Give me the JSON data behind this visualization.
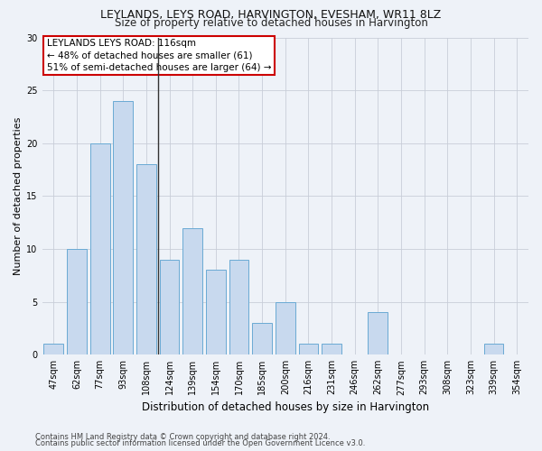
{
  "title": "LEYLANDS, LEYS ROAD, HARVINGTON, EVESHAM, WR11 8LZ",
  "subtitle": "Size of property relative to detached houses in Harvington",
  "xlabel": "Distribution of detached houses by size in Harvington",
  "ylabel": "Number of detached properties",
  "categories": [
    "47sqm",
    "62sqm",
    "77sqm",
    "93sqm",
    "108sqm",
    "124sqm",
    "139sqm",
    "154sqm",
    "170sqm",
    "185sqm",
    "200sqm",
    "216sqm",
    "231sqm",
    "246sqm",
    "262sqm",
    "277sqm",
    "293sqm",
    "308sqm",
    "323sqm",
    "339sqm",
    "354sqm"
  ],
  "values": [
    1,
    10,
    20,
    24,
    18,
    9,
    12,
    8,
    9,
    3,
    5,
    1,
    1,
    0,
    4,
    0,
    0,
    0,
    0,
    1,
    0
  ],
  "bar_color": "#c8d9ee",
  "bar_edge_color": "#6aaad4",
  "highlight_bar_index": 4,
  "highlight_line_color": "#333333",
  "annotation_line1": "LEYLANDS LEYS ROAD: 116sqm",
  "annotation_line2": "← 48% of detached houses are smaller (61)",
  "annotation_line3": "51% of semi-detached houses are larger (64) →",
  "annotation_box_color": "#ffffff",
  "annotation_box_edge_color": "#cc0000",
  "ylim": [
    0,
    30
  ],
  "yticks": [
    0,
    5,
    10,
    15,
    20,
    25,
    30
  ],
  "grid_color": "#c8cdd8",
  "background_color": "#eef2f8",
  "footer_line1": "Contains HM Land Registry data © Crown copyright and database right 2024.",
  "footer_line2": "Contains public sector information licensed under the Open Government Licence v3.0.",
  "title_fontsize": 9,
  "subtitle_fontsize": 8.5,
  "ylabel_fontsize": 8,
  "xlabel_fontsize": 8.5,
  "tick_fontsize": 7,
  "footer_fontsize": 6,
  "annot_fontsize": 7.5
}
